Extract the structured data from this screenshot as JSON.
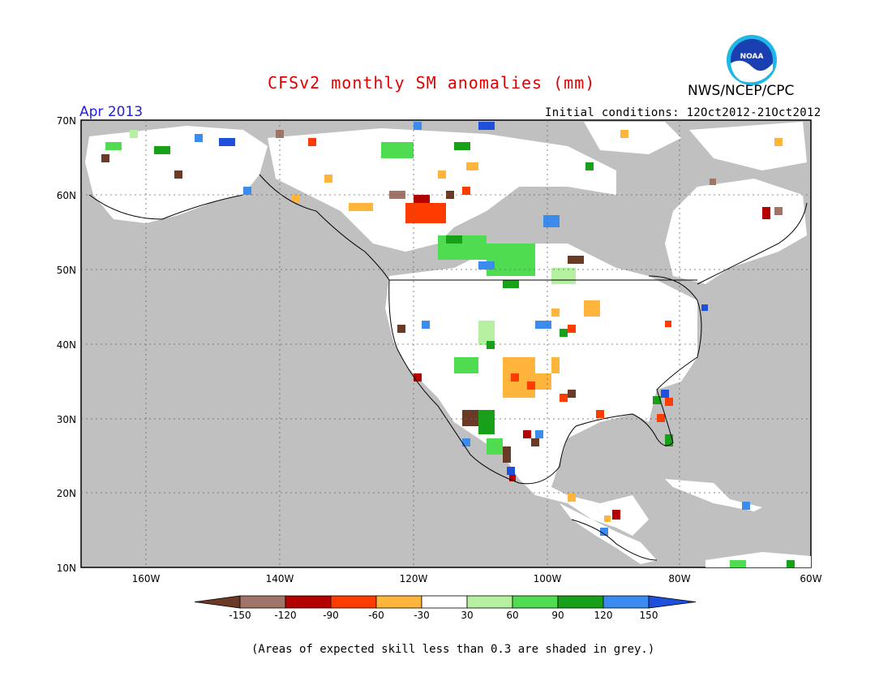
{
  "header": {
    "title": "CFSv2 monthly SM anomalies (mm)",
    "agency": "NWS/NCEP/CPC",
    "logo_text": "NOAA",
    "month": "Apr 2013",
    "initial_conditions": "Initial conditions: 12Oct2012-21Oct2012"
  },
  "map": {
    "lat_labels": [
      "70N",
      "60N",
      "50N",
      "40N",
      "30N",
      "20N",
      "10N"
    ],
    "lon_labels": [
      "160W",
      "140W",
      "120W",
      "100W",
      "80W",
      "60W"
    ],
    "background_color": "#c0c0c0",
    "land_color": "#ffffff"
  },
  "legend": {
    "breaks": [
      "-150",
      "-120",
      "-90",
      "-60",
      "-30",
      "30",
      "60",
      "90",
      "120",
      "150"
    ],
    "colors": [
      "#6b3a26",
      "#a07468",
      "#b40000",
      "#ff3c00",
      "#ffb43c",
      "#ffffff",
      "#b4f0a0",
      "#50dc50",
      "#18a018",
      "#3c8cf0",
      "#1e50dc"
    ]
  },
  "footnote": "(Areas of expected skill less than 0.3 are shaded in grey.)"
}
